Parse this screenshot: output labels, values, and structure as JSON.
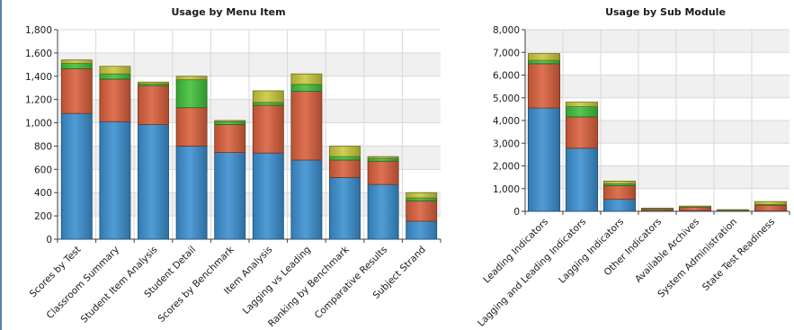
{
  "colors": {
    "blue": "#3a8fd0",
    "red": "#d95f3c",
    "green": "#3fbf3a",
    "yellow": "#c8c83c",
    "gridline": "#d8d8d8",
    "plot_band": "#f0f0f0",
    "axis": "#404040",
    "frame": "#5b7fb4"
  },
  "chart_data": [
    {
      "type": "bar",
      "stacked": true,
      "title": "Usage by Menu Item",
      "xlabel": "",
      "ylabel": "",
      "ylim": [
        0,
        1800
      ],
      "yticks": [
        0,
        200,
        400,
        600,
        800,
        1000,
        1200,
        1400,
        1600,
        1800
      ],
      "ytick_labels": [
        "0",
        "200",
        "400",
        "600",
        "800",
        "1,000",
        "1,200",
        "1,400",
        "1,600",
        "1,800"
      ],
      "grid": true,
      "legend": "none",
      "categories": [
        "Scores by Test",
        "Classroom Summary",
        "Student Item Analysis",
        "Student Detail",
        "Scores by Benchmark",
        "Item Analysis",
        "Lagging vs Leading",
        "Ranking by Benchmark",
        "Comparative Results",
        "Subject Strand"
      ],
      "series": [
        {
          "color": "blue",
          "values": [
            1080,
            1010,
            985,
            800,
            745,
            740,
            680,
            530,
            470,
            155
          ]
        },
        {
          "color": "red",
          "values": [
            385,
            365,
            335,
            330,
            240,
            410,
            590,
            150,
            200,
            175
          ]
        },
        {
          "color": "green",
          "values": [
            45,
            45,
            15,
            240,
            25,
            25,
            60,
            30,
            25,
            25
          ]
        },
        {
          "color": "yellow",
          "values": [
            30,
            65,
            15,
            30,
            10,
            100,
            90,
            90,
            15,
            45
          ]
        }
      ]
    },
    {
      "type": "bar",
      "stacked": true,
      "title": "Usage by Sub Module",
      "xlabel": "",
      "ylabel": "",
      "ylim": [
        0,
        8000
      ],
      "yticks": [
        0,
        1000,
        2000,
        3000,
        4000,
        5000,
        6000,
        7000,
        8000
      ],
      "ytick_labels": [
        "0",
        "1,000",
        "2,000",
        "3,000",
        "4,000",
        "5,000",
        "6,000",
        "7,000",
        "8,000"
      ],
      "grid": true,
      "legend": "none",
      "categories": [
        "Leading Indicators",
        "Lagging and Leading Indicators",
        "Lagging Indicators",
        "Other Indicators",
        "Available Archives",
        "System Administration",
        "State Test Readiness"
      ],
      "series": [
        {
          "color": "blue",
          "values": [
            4550,
            2780,
            530,
            30,
            30,
            20,
            20
          ]
        },
        {
          "color": "red",
          "values": [
            1950,
            1380,
            600,
            70,
            150,
            20,
            250
          ]
        },
        {
          "color": "green",
          "values": [
            150,
            450,
            80,
            10,
            10,
            5,
            30
          ]
        },
        {
          "color": "yellow",
          "values": [
            300,
            200,
            120,
            30,
            40,
            30,
            130
          ]
        }
      ]
    }
  ]
}
